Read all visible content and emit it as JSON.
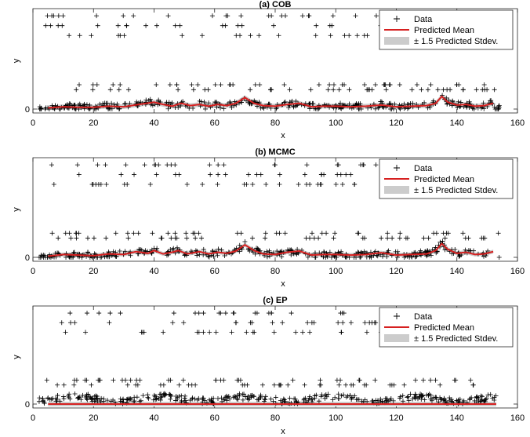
{
  "chart_data": [
    {
      "type": "scatter",
      "title": "(a) COB",
      "xlabel": "x",
      "ylabel": "y",
      "xlim": [
        0,
        160
      ],
      "xticks": [
        0,
        20,
        40,
        60,
        80,
        100,
        120,
        140,
        160
      ],
      "yticks": [
        0
      ],
      "legend": {
        "placement": "top-right",
        "entries": [
          "Data",
          "Predicted Mean",
          "± 1.5 Predicted Stdev."
        ]
      },
      "mean": [
        [
          5,
          0.02
        ],
        [
          10,
          0.04
        ],
        [
          15,
          0.03
        ],
        [
          20,
          0.03
        ],
        [
          25,
          0.05
        ],
        [
          30,
          0.04
        ],
        [
          35,
          0.08
        ],
        [
          40,
          0.12
        ],
        [
          43,
          0.08
        ],
        [
          46,
          0.05
        ],
        [
          49,
          0.1
        ],
        [
          52,
          0.06
        ],
        [
          55,
          0.08
        ],
        [
          58,
          0.05
        ],
        [
          61,
          0.08
        ],
        [
          64,
          0.06
        ],
        [
          67,
          0.1
        ],
        [
          70,
          0.2
        ],
        [
          73,
          0.1
        ],
        [
          76,
          0.06
        ],
        [
          80,
          0.05
        ],
        [
          84,
          0.08
        ],
        [
          88,
          0.1
        ],
        [
          92,
          0.04
        ],
        [
          96,
          0.05
        ],
        [
          100,
          0.05
        ],
        [
          105,
          0.04
        ],
        [
          110,
          0.05
        ],
        [
          115,
          0.07
        ],
        [
          120,
          0.04
        ],
        [
          125,
          0.05
        ],
        [
          130,
          0.06
        ],
        [
          133,
          0.1
        ],
        [
          135,
          0.22
        ],
        [
          137,
          0.12
        ],
        [
          140,
          0.07
        ],
        [
          143,
          0.08
        ],
        [
          146,
          0.05
        ],
        [
          149,
          0.06
        ],
        [
          152,
          0.1
        ]
      ],
      "band_half_width": 0.04,
      "mean_color": "#d62020",
      "band_color": "#cccccc"
    },
    {
      "type": "scatter",
      "title": "(b) MCMC",
      "xlabel": "x",
      "ylabel": "y",
      "xlim": [
        0,
        160
      ],
      "xticks": [
        0,
        20,
        40,
        60,
        80,
        100,
        120,
        140,
        160
      ],
      "yticks": [
        0
      ],
      "legend": {
        "placement": "top-right",
        "entries": [
          "Data",
          "Predicted Mean",
          "± 1.5 Predicted Stdev."
        ]
      },
      "mean": [
        [
          5,
          0.02
        ],
        [
          10,
          0.05
        ],
        [
          15,
          0.04
        ],
        [
          20,
          0.03
        ],
        [
          25,
          0.06
        ],
        [
          30,
          0.05
        ],
        [
          34,
          0.1
        ],
        [
          38,
          0.07
        ],
        [
          40,
          0.12
        ],
        [
          43,
          0.06
        ],
        [
          46,
          0.09
        ],
        [
          48,
          0.12
        ],
        [
          51,
          0.06
        ],
        [
          55,
          0.1
        ],
        [
          58,
          0.06
        ],
        [
          61,
          0.09
        ],
        [
          64,
          0.07
        ],
        [
          67,
          0.11
        ],
        [
          70,
          0.22
        ],
        [
          73,
          0.12
        ],
        [
          76,
          0.06
        ],
        [
          80,
          0.05
        ],
        [
          84,
          0.09
        ],
        [
          88,
          0.11
        ],
        [
          92,
          0.04
        ],
        [
          96,
          0.05
        ],
        [
          100,
          0.05
        ],
        [
          105,
          0.04
        ],
        [
          110,
          0.05
        ],
        [
          115,
          0.08
        ],
        [
          120,
          0.04
        ],
        [
          125,
          0.05
        ],
        [
          130,
          0.06
        ],
        [
          133,
          0.12
        ],
        [
          135,
          0.24
        ],
        [
          137,
          0.14
        ],
        [
          140,
          0.07
        ],
        [
          143,
          0.09
        ],
        [
          146,
          0.05
        ],
        [
          149,
          0.06
        ],
        [
          152,
          0.1
        ]
      ],
      "band_half_width": 0.035,
      "mean_color": "#d62020",
      "band_color": "#cccccc"
    },
    {
      "type": "scatter",
      "title": "(c) EP",
      "xlabel": "x",
      "ylabel": "y",
      "xlim": [
        0,
        160
      ],
      "xticks": [
        0,
        20,
        40,
        60,
        80,
        100,
        120,
        140,
        160
      ],
      "yticks": [
        0
      ],
      "legend": {
        "placement": "top-right",
        "entries": [
          "Data",
          "Predicted Mean",
          "± 1.5 Predicted Stdev."
        ]
      },
      "mean": [
        [
          5,
          0.0
        ],
        [
          20,
          0.0
        ],
        [
          40,
          0.0
        ],
        [
          60,
          0.0
        ],
        [
          80,
          0.0
        ],
        [
          100,
          0.0
        ],
        [
          120,
          0.0
        ],
        [
          140,
          0.0
        ],
        [
          153,
          0.0
        ]
      ],
      "band_half_width": 0.04,
      "mean_color": "#d62020",
      "band_color": "#cccccc"
    }
  ]
}
